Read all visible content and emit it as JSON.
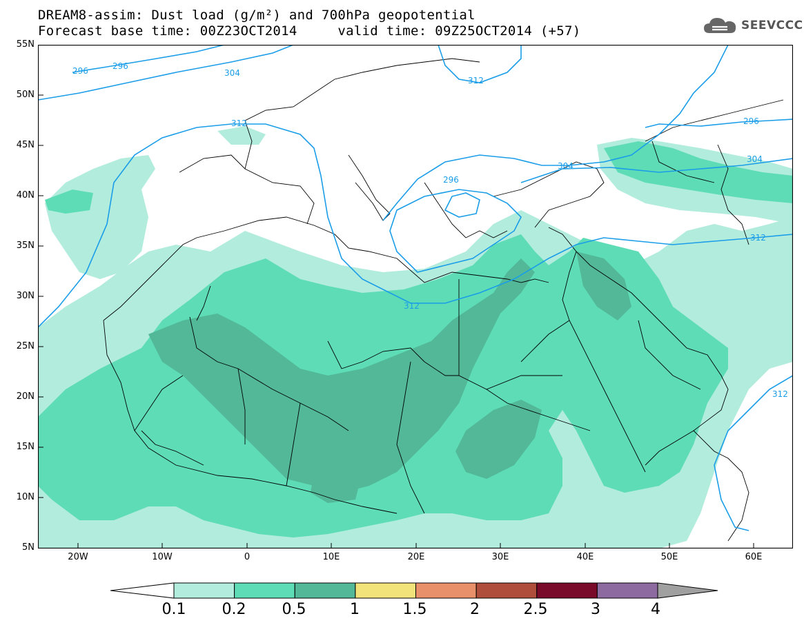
{
  "header": {
    "title_line1": "DREAM8-assim: Dust load (g/m²) and 700hPa geopotential",
    "title_line2": "Forecast base time: 00Z23OCT2014     valid time: 09Z25OCT2014 (+57)"
  },
  "logo": {
    "text": "SEEVCCC",
    "icon": "cloud-icon"
  },
  "map": {
    "lat_labels": [
      "55N",
      "50N",
      "45N",
      "40N",
      "35N",
      "30N",
      "25N",
      "20N",
      "15N",
      "10N",
      "5N"
    ],
    "lon_labels": [
      "20W",
      "10W",
      "0",
      "10E",
      "20E",
      "30E",
      "40E",
      "50E",
      "60E"
    ],
    "contour_labels": [
      "296",
      "296",
      "304",
      "312",
      "312",
      "296",
      "304",
      "296",
      "304",
      "312",
      "312",
      "312"
    ],
    "colors": {
      "contour_line": "#1a9de8",
      "coast_border": "#000000",
      "dust_0_1": "#b2ecdd",
      "dust_0_2": "#5edcb6",
      "dust_0_5": "#52b897"
    }
  },
  "legend": {
    "levels": [
      "0.1",
      "0.2",
      "0.5",
      "1",
      "1.5",
      "2",
      "2.5",
      "3",
      "4"
    ],
    "colors": [
      "#b2ecdd",
      "#5edcb6",
      "#52b897",
      "#f2e27a",
      "#e8906a",
      "#b04e3c",
      "#7a0a2a",
      "#8d6aa0",
      "#a0a0a0"
    ]
  }
}
